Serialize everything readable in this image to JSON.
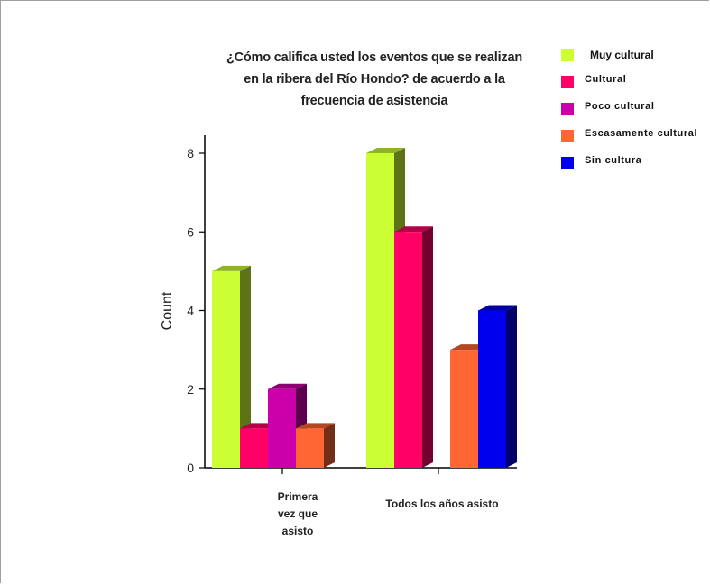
{
  "chart_data": {
    "type": "bar",
    "title_lines": [
      "¿Cómo califica usted los eventos que se realizan",
      "en la ribera del Río Hondo? de acuerdo a la",
      "frecuencia de asistencia"
    ],
    "ylabel": "Count",
    "xlabel": "",
    "ylim": [
      0,
      8
    ],
    "yticks": [
      "0",
      "2",
      "4",
      "6",
      "8"
    ],
    "categories": [
      "Primera vez que asisto",
      "Todos los años asisto"
    ],
    "category_lines": [
      [
        "Primera",
        "vez que",
        "asisto"
      ],
      [
        "Todos los años asisto"
      ]
    ],
    "series": [
      {
        "name": "Muy cultural",
        "color": "#ccff33",
        "values": [
          5,
          8
        ]
      },
      {
        "name": "Cultural",
        "color": "#ff0066",
        "values": [
          1,
          6
        ]
      },
      {
        "name": "Poco cultural",
        "color": "#cc00aa",
        "values": [
          2,
          0
        ]
      },
      {
        "name": "Escasamente cultural",
        "color": "#ff6633",
        "values": [
          1,
          3
        ]
      },
      {
        "name": "Sin cultura",
        "color": "#0000ee",
        "values": [
          0,
          4
        ]
      }
    ],
    "legend_position": "top-right",
    "grid": false
  }
}
